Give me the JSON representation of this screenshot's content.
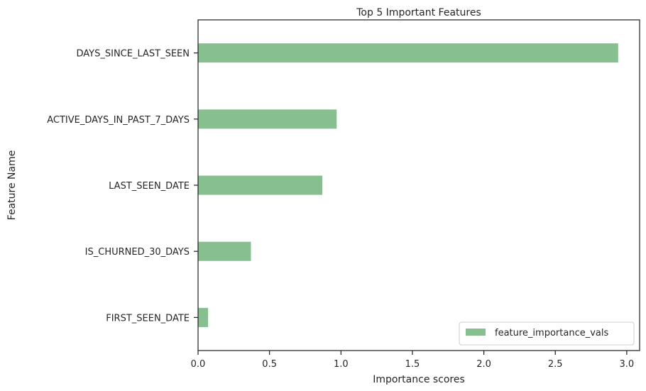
{
  "chart_data": {
    "type": "bar",
    "orientation": "horizontal",
    "title": "Top 5 Important Features",
    "xlabel": "Importance scores",
    "ylabel": "Feature Name",
    "categories": [
      "FIRST_SEEN_DATE",
      "IS_CHURNED_30_DAYS",
      "LAST_SEEN_DATE",
      "ACTIVE_DAYS_IN_PAST_7_DAYS",
      "DAYS_SINCE_LAST_SEEN"
    ],
    "series": [
      {
        "name": "feature_importance_vals",
        "values": [
          0.07,
          0.37,
          0.87,
          0.97,
          2.94
        ]
      }
    ],
    "xlim": [
      0,
      3.09
    ],
    "xticks": [
      0.0,
      0.5,
      1.0,
      1.5,
      2.0,
      2.5,
      3.0
    ],
    "xtick_labels": [
      "0.0",
      "0.5",
      "1.0",
      "1.5",
      "2.0",
      "2.5",
      "3.0"
    ],
    "grid": false,
    "legend_position": "lower-right",
    "bar_color": "#87bf91",
    "axis_color": "#262626"
  }
}
